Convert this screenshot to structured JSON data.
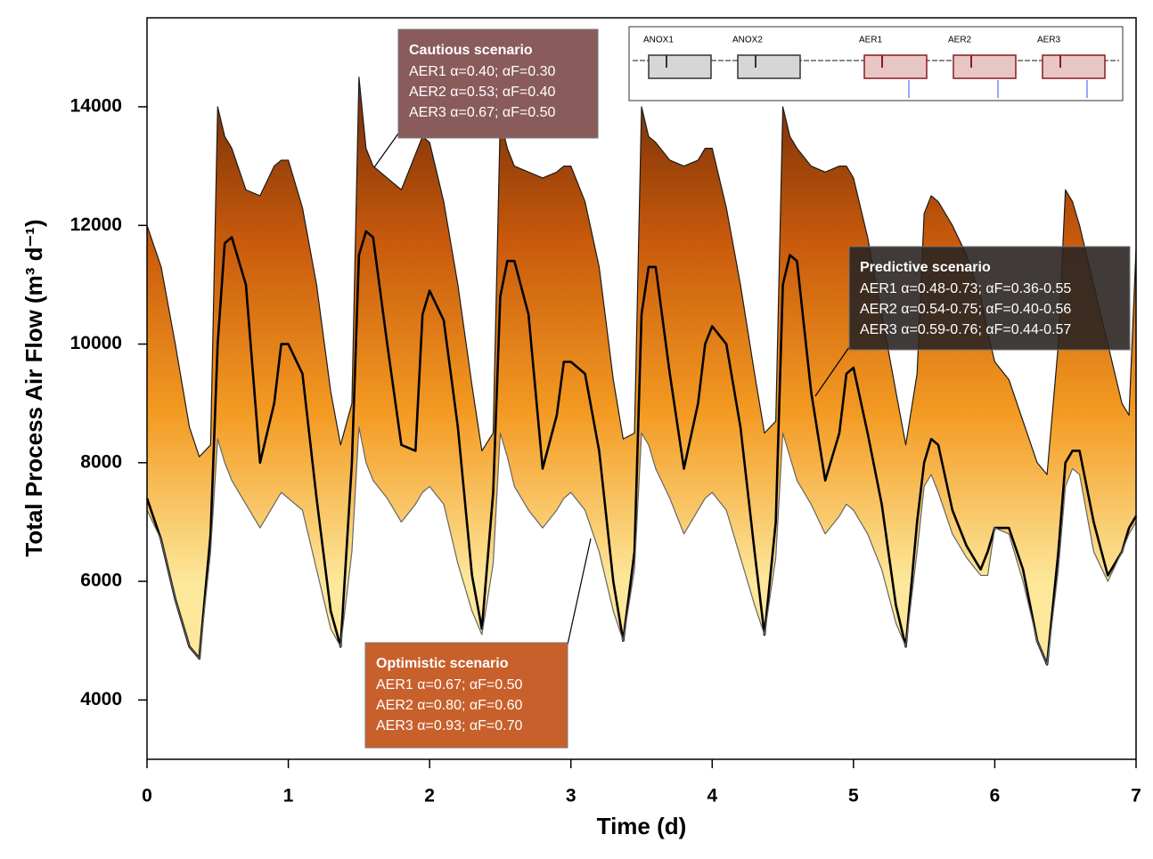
{
  "chart_data": {
    "type": "band-line",
    "x_label": "Time (d)",
    "y_label": "Total Process Air Flow (m³ d⁻¹)",
    "xlim": [
      0,
      7
    ],
    "xticks": [
      0,
      1,
      2,
      3,
      4,
      5,
      6,
      7
    ],
    "ylim": [
      3000,
      15500
    ],
    "yticks": [
      4000,
      6000,
      8000,
      10000,
      12000,
      14000
    ],
    "fill_gradient": [
      "#6b2a08",
      "#c85a0c",
      "#f39a22",
      "#fde79a"
    ],
    "x": [
      0,
      0.1,
      0.2,
      0.3,
      0.37,
      0.45,
      0.5,
      0.55,
      0.6,
      0.7,
      0.8,
      0.9,
      0.95,
      1,
      1.1,
      1.2,
      1.3,
      1.37,
      1.45,
      1.5,
      1.55,
      1.6,
      1.7,
      1.8,
      1.9,
      1.95,
      2,
      2.1,
      2.2,
      2.3,
      2.37,
      2.45,
      2.5,
      2.55,
      2.6,
      2.7,
      2.8,
      2.9,
      2.95,
      3,
      3.1,
      3.2,
      3.3,
      3.37,
      3.45,
      3.5,
      3.55,
      3.6,
      3.7,
      3.8,
      3.9,
      3.95,
      4,
      4.1,
      4.2,
      4.3,
      4.37,
      4.45,
      4.5,
      4.55,
      4.6,
      4.7,
      4.8,
      4.9,
      4.95,
      5,
      5.1,
      5.2,
      5.3,
      5.37,
      5.45,
      5.5,
      5.55,
      5.6,
      5.7,
      5.8,
      5.9,
      5.95,
      6,
      6.1,
      6.2,
      6.3,
      6.37,
      6.45,
      6.5,
      6.55,
      6.6,
      6.7,
      6.8,
      6.9,
      6.95,
      7
    ],
    "series": [
      {
        "name": "Cautious scenario",
        "color": "#1a1a1a",
        "width": 1.2,
        "values": [
          12000,
          11300,
          10000,
          8600,
          8100,
          8300,
          14000,
          13500,
          13300,
          12600,
          12500,
          13000,
          13100,
          13100,
          12300,
          11000,
          9200,
          8300,
          9000,
          14500,
          13300,
          13000,
          12800,
          12600,
          13200,
          13500,
          13400,
          12400,
          11000,
          9300,
          8200,
          8500,
          13800,
          13300,
          13000,
          12900,
          12800,
          12900,
          13000,
          13000,
          12400,
          11300,
          9400,
          8400,
          8500,
          14000,
          13500,
          13400,
          13100,
          13000,
          13100,
          13300,
          13300,
          12300,
          11000,
          9500,
          8500,
          8700,
          14000,
          13500,
          13300,
          13000,
          12900,
          13000,
          13000,
          12800,
          11800,
          10500,
          9200,
          8300,
          9500,
          12200,
          12500,
          12400,
          12000,
          11500,
          10800,
          10200,
          9700,
          9400,
          8700,
          8000,
          7800,
          10000,
          12600,
          12400,
          12000,
          11000,
          10000,
          9000,
          8800,
          11600
        ]
      },
      {
        "name": "Predictive scenario",
        "color": "#000000",
        "width": 2.6,
        "values": [
          7400,
          6700,
          5700,
          4900,
          4700,
          6800,
          10000,
          11700,
          11800,
          11000,
          8000,
          9000,
          10000,
          10000,
          9500,
          7400,
          5500,
          4900,
          8000,
          11500,
          11900,
          11800,
          10000,
          8300,
          8200,
          10500,
          10900,
          10400,
          8600,
          6100,
          5200,
          7500,
          10800,
          11400,
          11400,
          10500,
          7900,
          8800,
          9700,
          9700,
          9500,
          8200,
          6000,
          5000,
          6500,
          10500,
          11300,
          11300,
          9500,
          7900,
          9000,
          10000,
          10300,
          10000,
          8600,
          6500,
          5100,
          7000,
          11000,
          11500,
          11400,
          9200,
          7700,
          8500,
          9500,
          9600,
          8500,
          7300,
          5600,
          4900,
          7000,
          8000,
          8400,
          8300,
          7200,
          6600,
          6200,
          6500,
          6900,
          6900,
          6200,
          5000,
          4600,
          6500,
          8000,
          8200,
          8200,
          7000,
          6100,
          6500,
          6900,
          7100
        ]
      },
      {
        "name": "Optimistic scenario",
        "color": "#666666",
        "width": 1.2,
        "values": [
          7200,
          6700,
          5700,
          4900,
          4700,
          6500,
          8400,
          8000,
          7700,
          7300,
          6900,
          7300,
          7500,
          7400,
          7200,
          6200,
          5200,
          4900,
          6500,
          8600,
          8000,
          7700,
          7400,
          7000,
          7300,
          7500,
          7600,
          7300,
          6300,
          5500,
          5100,
          6300,
          8500,
          8100,
          7600,
          7200,
          6900,
          7200,
          7400,
          7500,
          7200,
          6500,
          5500,
          5000,
          6200,
          8500,
          8300,
          7900,
          7400,
          6800,
          7200,
          7400,
          7500,
          7200,
          6400,
          5600,
          5100,
          6400,
          8500,
          8100,
          7700,
          7300,
          6800,
          7100,
          7300,
          7200,
          6800,
          6200,
          5300,
          4900,
          6500,
          7600,
          7800,
          7500,
          6800,
          6400,
          6100,
          6100,
          6900,
          6800,
          6000,
          5000,
          4600,
          6200,
          7600,
          7900,
          7800,
          6500,
          6000,
          6500,
          6800,
          7000
        ]
      }
    ],
    "annotations": [
      {
        "lines": [
          "AER1 α=0.40; αF=0.30",
          "AER2 α=0.53; αF=0.40",
          "AER3 α=0.67; αF=0.50"
        ],
        "color": "#8a5b5b"
      },
      {
        "lines": [
          "AER1 α=0.48-0.73; αF=0.36-0.55",
          "AER2 α=0.54-0.75; αF=0.40-0.56",
          "AER3 α=0.59-0.76; αF=0.44-0.57"
        ],
        "color": "#2b2522"
      },
      {
        "lines": [
          "AER1 α=0.67; αF=0.50",
          "AER2 α=0.80; αF=0.60",
          "AER3 α=0.93; αF=0.70"
        ],
        "color": "#c8602c"
      }
    ],
    "inset_labels": [
      "ANOX1",
      "ANOX2",
      "AER1",
      "AER2",
      "AER3"
    ]
  }
}
